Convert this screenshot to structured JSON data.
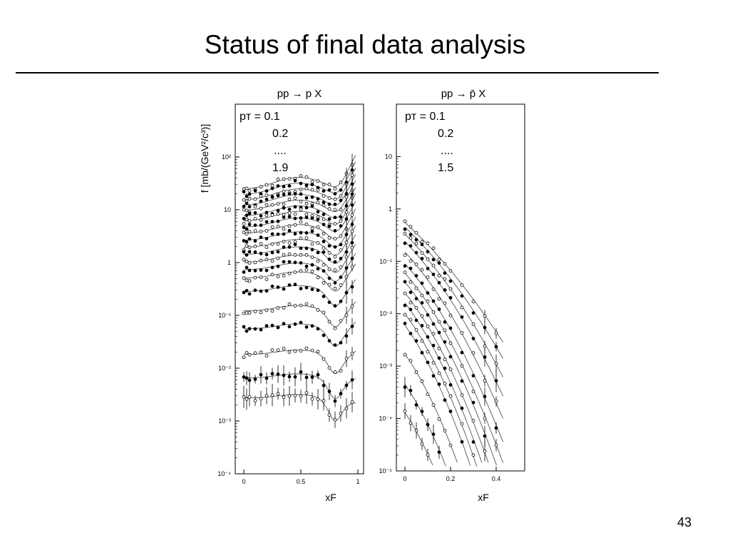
{
  "slide": {
    "title": "Status of final data analysis",
    "page_number": "43"
  },
  "chart_data": [
    {
      "type": "scatter",
      "scale": "log",
      "title": "pp → p X",
      "xlabel": "xF",
      "ylabel": "f  [mb/(GeV²/c³)]",
      "xlim": [
        0,
        1
      ],
      "ylim": [
        0.0001,
        1000
      ],
      "xticks": [
        0,
        0.5,
        1
      ],
      "xtick_labels": [
        "0",
        "0.5",
        "1"
      ],
      "yticks": [
        0.0001,
        0.001,
        0.01,
        0.1,
        1,
        10,
        100
      ],
      "ytick_labels": [
        "10⁻⁴",
        "10⁻³",
        "10⁻²",
        "10⁻¹",
        "1",
        "10",
        "10²"
      ],
      "legend": {
        "pt_label": "pᴛ = 0.1",
        "lines": [
          "0.2",
          "....",
          "1.9"
        ]
      },
      "marker_styles": [
        "open",
        "filled"
      ],
      "series_fit_levels": [
        24,
        19,
        15,
        12,
        9.5,
        7.5,
        6,
        4.6,
        3.5,
        2.6,
        1.9,
        1.4,
        1.0,
        0.72,
        0.5,
        0.28,
        0.12,
        0.055,
        0.018,
        0.0065,
        0.0027
      ],
      "x": [
        0,
        0.025,
        0.05,
        0.1,
        0.15,
        0.2,
        0.25,
        0.3,
        0.35,
        0.4,
        0.45,
        0.5,
        0.55,
        0.6,
        0.65,
        0.7,
        0.75,
        0.8,
        0.85,
        0.9,
        0.95
      ]
    },
    {
      "type": "scatter",
      "scale": "log",
      "title": "pp → p̄ X",
      "xlabel": "xF",
      "ylabel": "",
      "xlim": [
        0,
        0.5
      ],
      "ylim": [
        1e-05,
        100
      ],
      "xticks": [
        0,
        0.2,
        0.4
      ],
      "xtick_labels": [
        "0",
        "0.2",
        "0.4"
      ],
      "yticks": [
        1e-05,
        0.0001,
        0.001,
        0.01,
        0.1,
        1,
        10
      ],
      "ytick_labels": [
        "10⁻⁵",
        "10⁻⁴",
        "10⁻³",
        "10⁻²",
        "10⁻¹",
        "1",
        "10"
      ],
      "legend": {
        "pt_label": "pᴛ = 0.1",
        "lines": [
          "0.2",
          "....",
          "1.5"
        ]
      },
      "marker_styles": [
        "open",
        "filled"
      ],
      "series_fit_levels": [
        0.55,
        0.45,
        0.33,
        0.24,
        0.15,
        0.09,
        0.06,
        0.04,
        0.025,
        0.016,
        0.01,
        0.006,
        0.0017,
        0.00045,
        0.00013
      ],
      "x": [
        0,
        0.025,
        0.05,
        0.075,
        0.1,
        0.125,
        0.15,
        0.175,
        0.2,
        0.25,
        0.3,
        0.35,
        0.4
      ]
    }
  ]
}
